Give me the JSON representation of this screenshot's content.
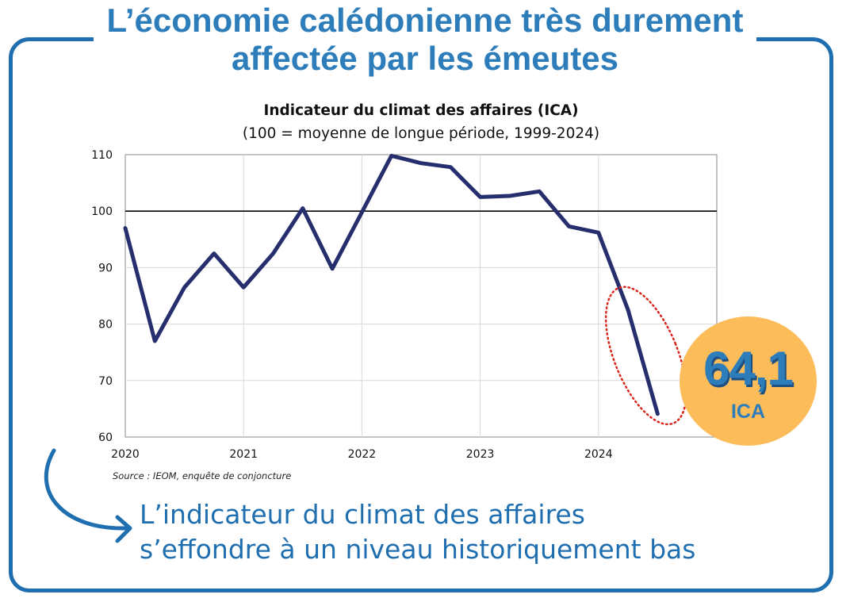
{
  "headline": "L’économie calédonienne très durement affectée par les émeutes",
  "chart_data": {
    "type": "line",
    "title": "Indicateur du climat des affaires (ICA)",
    "subtitle": "(100 = moyenne de longue période, 1999-2024)",
    "xlabel": "",
    "ylabel": "",
    "xlim": [
      2020,
      2025
    ],
    "ylim": [
      60,
      110
    ],
    "x_ticks": [
      "2020",
      "2021",
      "2022",
      "2023",
      "2024"
    ],
    "y_ticks": [
      "60",
      "70",
      "80",
      "90",
      "100",
      "110"
    ],
    "reference_line": 100,
    "grid": true,
    "series": [
      {
        "x": [
          2020.0,
          2020.25,
          2020.5,
          2020.75,
          2021.0,
          2021.25,
          2021.5,
          2021.75,
          2022.0,
          2022.25,
          2022.5,
          2022.75,
          2023.0,
          2023.25,
          2023.5,
          2023.75,
          2024.0,
          2024.25,
          2024.5
        ],
        "values": [
          97,
          77,
          86.5,
          92.5,
          86.5,
          92.5,
          100.5,
          89.8,
          99.8,
          109.8,
          108.5,
          107.8,
          102.5,
          102.7,
          103.5,
          97.3,
          96.2,
          82.5,
          64.1
        ],
        "color": "#262e6e"
      }
    ],
    "source": "Source :  IEOM, enquête de conjoncture"
  },
  "highlight": {
    "value": "64,1",
    "label": "ICA",
    "ellipse_color": "#d9261c",
    "badge_color": "#fcbc5a"
  },
  "caption_lines": [
    "L’indicateur du climat des affaires",
    "s’effondre à un niveau historiquement bas"
  ],
  "colors": {
    "accent": "#2e7dbb",
    "frame": "#1f6fb0",
    "line": "#262e6e"
  }
}
